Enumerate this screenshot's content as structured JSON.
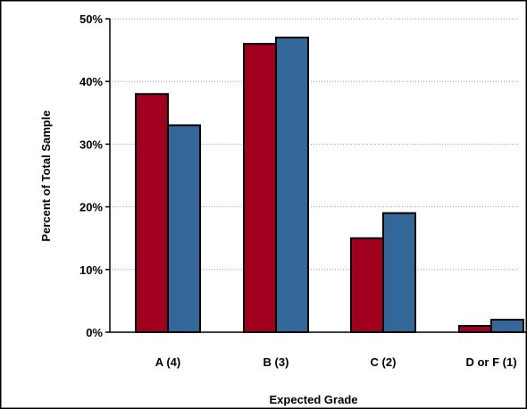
{
  "chart_data": {
    "type": "bar",
    "title": "",
    "xlabel": "Expected Grade",
    "ylabel": "Percent of Total Sample",
    "categories": [
      "A (4)",
      "B (3)",
      "C (2)",
      "D or F (1)"
    ],
    "series": [
      {
        "values": [
          38,
          46,
          15,
          1
        ],
        "color": "#a0001e"
      },
      {
        "values": [
          33,
          47,
          19,
          2
        ],
        "color": "#336699"
      }
    ],
    "ylim": [
      0,
      50
    ],
    "y_ticks": [
      0,
      10,
      20,
      30,
      40,
      50
    ],
    "y_tick_labels": [
      "0%",
      "10%",
      "20%",
      "30%",
      "40%",
      "50%"
    ],
    "grid": true,
    "legend": "none"
  }
}
